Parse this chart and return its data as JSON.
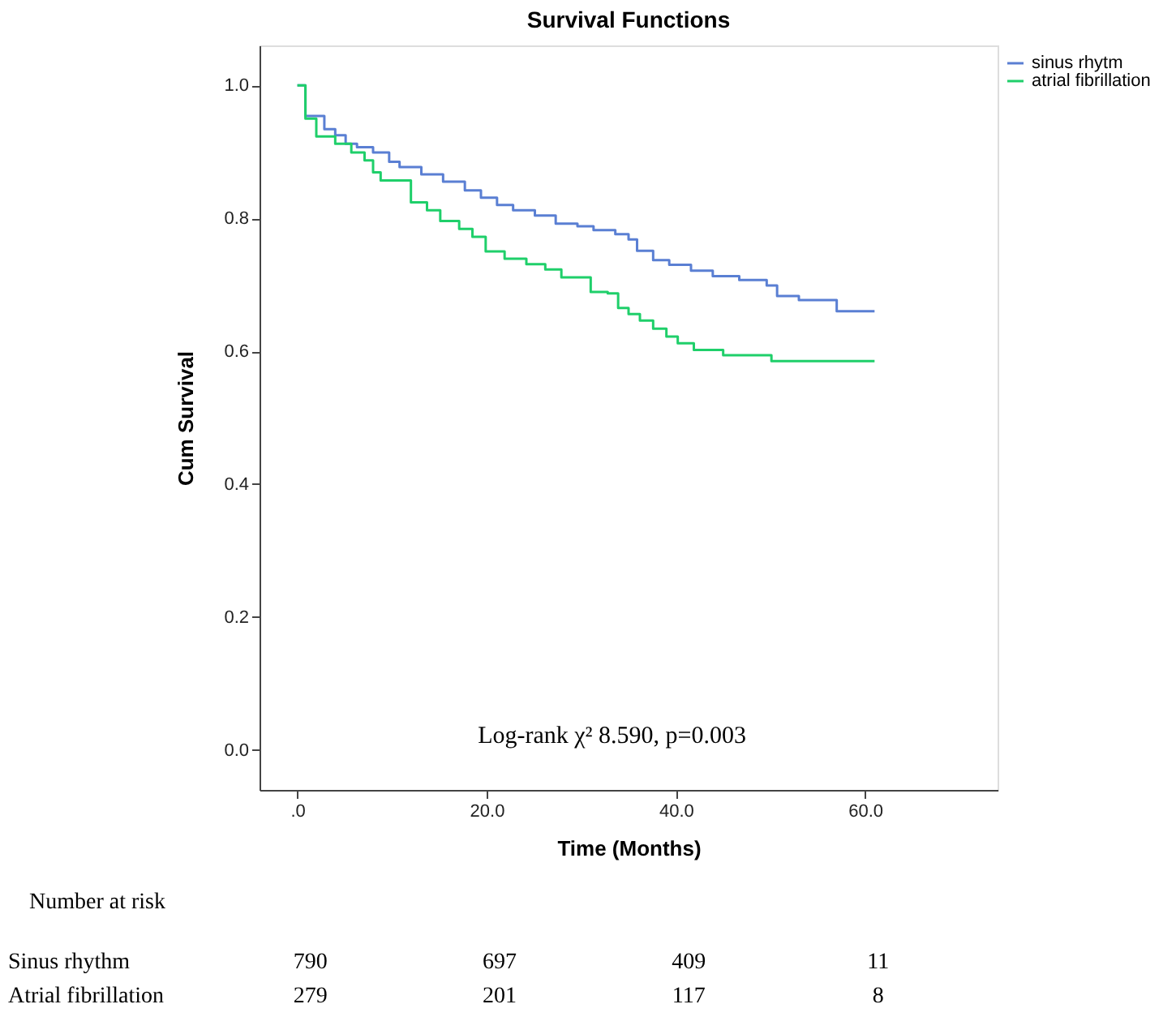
{
  "chart_data": {
    "type": "step",
    "title": "Survival Functions",
    "xlabel": "Time (Months)",
    "ylabel": "Cum Survival",
    "xlim": [
      -4,
      74
    ],
    "ylim": [
      -0.06,
      1.06
    ],
    "xticks": [
      {
        "value": 0,
        "label": ".0"
      },
      {
        "value": 20,
        "label": "20.0"
      },
      {
        "value": 40,
        "label": "40.0"
      },
      {
        "value": 60,
        "label": "60.0"
      }
    ],
    "yticks": [
      {
        "value": 0,
        "label": "0.0"
      },
      {
        "value": 0.2,
        "label": "0.2"
      },
      {
        "value": 0.4,
        "label": "0.4"
      },
      {
        "value": 0.6,
        "label": "0.6"
      },
      {
        "value": 0.8,
        "label": "0.8"
      },
      {
        "value": 1.0,
        "label": "1.0"
      }
    ],
    "grid": false,
    "legend": "top right",
    "line_style": "solid",
    "marker": "none",
    "series": [
      {
        "name": "sinus rhytm",
        "color": "#5a7fd3",
        "x": [
          0,
          0.85,
          2.85,
          4.0,
          5.1,
          6.3,
          8.0,
          9.7,
          10.8,
          13.1,
          15.4,
          17.7,
          19.4,
          21.1,
          22.8,
          25.1,
          27.3,
          29.6,
          31.3,
          33.6,
          35.0,
          35.9,
          37.6,
          39.3,
          41.6,
          43.9,
          46.7,
          49.6,
          50.7,
          53.0,
          57.0,
          61.0
        ],
        "values": [
          1.0,
          0.954,
          0.934,
          0.925,
          0.912,
          0.907,
          0.899,
          0.885,
          0.877,
          0.866,
          0.855,
          0.842,
          0.831,
          0.82,
          0.812,
          0.804,
          0.792,
          0.788,
          0.782,
          0.776,
          0.768,
          0.751,
          0.737,
          0.73,
          0.721,
          0.713,
          0.707,
          0.699,
          0.683,
          0.677,
          0.66,
          0.66
        ]
      },
      {
        "name": "atrial fibrillation",
        "color": "#1fcf6a",
        "x": [
          0,
          0.85,
          2.0,
          4.0,
          5.7,
          7.1,
          8.0,
          8.8,
          12.0,
          13.7,
          15.1,
          17.1,
          18.5,
          19.9,
          21.9,
          24.2,
          26.2,
          27.9,
          31.0,
          32.8,
          33.9,
          35.0,
          36.2,
          37.6,
          39.0,
          40.2,
          41.9,
          45.0,
          50.1,
          61.0
        ],
        "values": [
          1.0,
          0.95,
          0.923,
          0.912,
          0.899,
          0.887,
          0.869,
          0.857,
          0.824,
          0.812,
          0.796,
          0.784,
          0.772,
          0.75,
          0.739,
          0.731,
          0.723,
          0.711,
          0.689,
          0.687,
          0.665,
          0.656,
          0.646,
          0.634,
          0.622,
          0.612,
          0.602,
          0.594,
          0.585,
          0.585
        ]
      }
    ],
    "annotations": [
      "Log-rank χ² 8.590, p=0.003",
      "Number at risk",
      "Sinus rhythm",
      "790",
      "697",
      "409",
      "11",
      "Atrial fibrillation",
      "279",
      "201",
      "117",
      "8"
    ]
  }
}
